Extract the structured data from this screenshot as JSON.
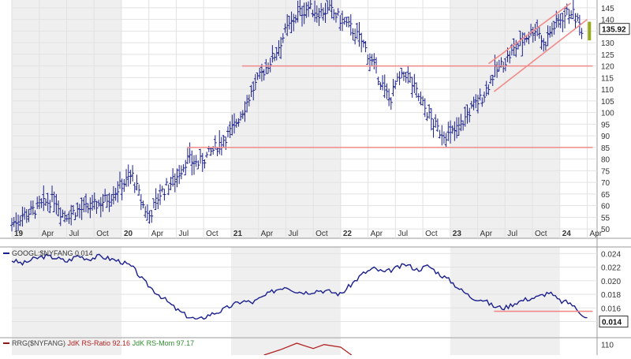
{
  "chart_data": [
    {
      "type": "bar",
      "variant": "ohlc-weekly",
      "title": "",
      "ylabel": "",
      "ylim": [
        48,
        147
      ],
      "x_tick_labels": [
        "19",
        "Apr",
        "Jul",
        "Oct",
        "20",
        "Apr",
        "Jul",
        "Oct",
        "21",
        "Apr",
        "Jul",
        "Oct",
        "22",
        "Apr",
        "Jul",
        "Oct",
        "23",
        "Apr",
        "Jul",
        "Oct",
        "24",
        "Apr"
      ],
      "y_tick_labels": [
        "145",
        "140",
        "135",
        "130",
        "125",
        "120",
        "115",
        "110",
        "105",
        "100",
        "95",
        "90",
        "85",
        "80",
        "75",
        "70",
        "65",
        "60",
        "55",
        "50"
      ],
      "last_price_label": "135.92",
      "series": [
        {
          "points": [
            [
              2019.0,
              52
            ],
            [
              2019.1,
              56
            ],
            [
              2019.2,
              58
            ],
            [
              2019.3,
              61
            ],
            [
              2019.4,
              63
            ],
            [
              2019.45,
              57
            ],
            [
              2019.5,
              56
            ],
            [
              2019.6,
              58
            ],
            [
              2019.7,
              59
            ],
            [
              2019.8,
              61
            ],
            [
              2019.9,
              64
            ],
            [
              2020.0,
              69
            ],
            [
              2020.1,
              73
            ],
            [
              2020.18,
              62
            ],
            [
              2020.25,
              55
            ],
            [
              2020.35,
              65
            ],
            [
              2020.5,
              72
            ],
            [
              2020.6,
              80
            ],
            [
              2020.7,
              78
            ],
            [
              2020.8,
              82
            ],
            [
              2020.9,
              87
            ],
            [
              2021.0,
              92
            ],
            [
              2021.1,
              100
            ],
            [
              2021.2,
              110
            ],
            [
              2021.3,
              118
            ],
            [
              2021.4,
              125
            ],
            [
              2021.5,
              135
            ],
            [
              2021.6,
              142
            ],
            [
              2021.7,
              145
            ],
            [
              2021.8,
              143
            ],
            [
              2021.9,
              144
            ],
            [
              2022.0,
              140
            ],
            [
              2022.1,
              136
            ],
            [
              2022.2,
              130
            ],
            [
              2022.3,
              120
            ],
            [
              2022.4,
              110
            ],
            [
              2022.45,
              105
            ],
            [
              2022.5,
              112
            ],
            [
              2022.6,
              117
            ],
            [
              2022.7,
              108
            ],
            [
              2022.8,
              99
            ],
            [
              2022.85,
              95
            ],
            [
              2022.9,
              92
            ],
            [
              2023.0,
              90
            ],
            [
              2023.1,
              95
            ],
            [
              2023.2,
              102
            ],
            [
              2023.3,
              107
            ],
            [
              2023.4,
              117
            ],
            [
              2023.5,
              122
            ],
            [
              2023.6,
              128
            ],
            [
              2023.7,
              133
            ],
            [
              2023.8,
              137
            ],
            [
              2023.85,
              128
            ],
            [
              2023.9,
              134
            ],
            [
              2024.0,
              140
            ],
            [
              2024.1,
              144
            ],
            [
              2024.15,
              140
            ],
            [
              2024.2,
              136
            ]
          ]
        }
      ],
      "support_lines": [
        {
          "y": 120,
          "from": 2021.1,
          "to": 2024.3
        },
        {
          "y": 85,
          "from": 2020.6,
          "to": 2024.3
        }
      ],
      "channel_lines": [
        {
          "from": [
            2023.35,
            121
          ],
          "to": [
            2024.1,
            147
          ]
        },
        {
          "from": [
            2023.4,
            109
          ],
          "to": [
            2024.25,
            140
          ]
        }
      ],
      "colors": {
        "bars": "#1a1f8c",
        "lines": "#f08a8a",
        "band": "#efefef",
        "last_bar": "#9aa81c"
      }
    },
    {
      "type": "line",
      "legend": "GOOGL:$NYFANG 0.014",
      "ylim": [
        0.0122,
        0.0245
      ],
      "y_tick_labels": [
        "0.024",
        "0.022",
        "0.020",
        "0.018",
        "0.016",
        "0.014"
      ],
      "last_value_label": "0.014",
      "series": [
        {
          "name": "GOOGL:$NYFANG",
          "points": [
            [
              2019.0,
              0.023
            ],
            [
              2019.1,
              0.0225
            ],
            [
              2019.2,
              0.0232
            ],
            [
              2019.3,
              0.0236
            ],
            [
              2019.4,
              0.0234
            ],
            [
              2019.5,
              0.0228
            ],
            [
              2019.6,
              0.0237
            ],
            [
              2019.7,
              0.0232
            ],
            [
              2019.8,
              0.0236
            ],
            [
              2019.9,
              0.0232
            ],
            [
              2020.0,
              0.0228
            ],
            [
              2020.1,
              0.022
            ],
            [
              2020.2,
              0.02
            ],
            [
              2020.3,
              0.0185
            ],
            [
              2020.4,
              0.0172
            ],
            [
              2020.5,
              0.0158
            ],
            [
              2020.6,
              0.0148
            ],
            [
              2020.7,
              0.0142
            ],
            [
              2020.8,
              0.015
            ],
            [
              2020.9,
              0.0155
            ],
            [
              2021.0,
              0.0163
            ],
            [
              2021.1,
              0.017
            ],
            [
              2021.2,
              0.0168
            ],
            [
              2021.3,
              0.0177
            ],
            [
              2021.4,
              0.0186
            ],
            [
              2021.5,
              0.0192
            ],
            [
              2021.6,
              0.0184
            ],
            [
              2021.7,
              0.0183
            ],
            [
              2021.8,
              0.0186
            ],
            [
              2021.9,
              0.0184
            ],
            [
              2022.0,
              0.018
            ],
            [
              2022.1,
              0.0195
            ],
            [
              2022.2,
              0.021
            ],
            [
              2022.3,
              0.0218
            ],
            [
              2022.4,
              0.0212
            ],
            [
              2022.5,
              0.0218
            ],
            [
              2022.6,
              0.0224
            ],
            [
              2022.7,
              0.0216
            ],
            [
              2022.8,
              0.0222
            ],
            [
              2022.9,
              0.021
            ],
            [
              2023.0,
              0.02
            ],
            [
              2023.1,
              0.0186
            ],
            [
              2023.2,
              0.0175
            ],
            [
              2023.3,
              0.0172
            ],
            [
              2023.4,
              0.0162
            ],
            [
              2023.5,
              0.016
            ],
            [
              2023.6,
              0.0168
            ],
            [
              2023.7,
              0.0173
            ],
            [
              2023.8,
              0.0176
            ],
            [
              2023.9,
              0.0183
            ],
            [
              2024.0,
              0.017
            ],
            [
              2024.1,
              0.0167
            ],
            [
              2024.15,
              0.0158
            ],
            [
              2024.2,
              0.0152
            ],
            [
              2024.25,
              0.0145
            ]
          ]
        }
      ],
      "support_lines": [
        {
          "y": 0.0155,
          "from": 2023.4,
          "to": 2024.3
        }
      ],
      "colors": {
        "line": "#1a1f8c",
        "support": "#f08a8a",
        "band": "#efefef",
        "legend_swatch": "#1a1f8c"
      }
    },
    {
      "type": "line",
      "legend": "RRG($NYFANG) JdK RS-Ratio 92.16 JdK RS-Mom 97.17",
      "legend_parts": [
        {
          "text": "RRG($NYFANG) ",
          "color": "#444444"
        },
        {
          "text": "JdK RS-Ratio 92.16",
          "color": "#b22222"
        },
        {
          "text": " ",
          "color": "#444444"
        },
        {
          "text": "JdK RS-Mom 97.17",
          "color": "#2e8b2e"
        }
      ],
      "ylim": [
        106,
        112
      ],
      "y_tick_labels": [
        "110"
      ],
      "series": [
        {
          "name": "JdK RS-Ratio",
          "points": [
            [
              2021.3,
              106
            ],
            [
              2021.45,
              108
            ],
            [
              2021.6,
              110.5
            ],
            [
              2021.75,
              108.5
            ],
            [
              2021.85,
              110
            ],
            [
              2022.0,
              109
            ],
            [
              2022.1,
              106
            ]
          ]
        }
      ],
      "colors": {
        "line": "#b22222",
        "legend_swatch": "#8b1a1a"
      }
    }
  ]
}
